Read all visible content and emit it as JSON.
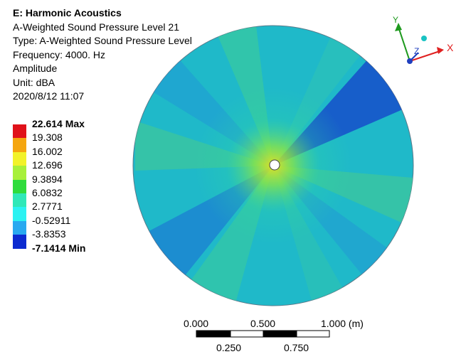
{
  "header": {
    "title": "E: Harmonic Acoustics",
    "lines": [
      "A-Weighted Sound Pressure Level 21",
      "Type: A-Weighted Sound Pressure Level",
      "Frequency: 4000. Hz",
      "Amplitude",
      "Unit: dBA",
      "2020/8/12 11:07"
    ]
  },
  "legend": {
    "max_label": "22.614 Max",
    "min_label": "-7.1414 Min",
    "levels": [
      "19.308",
      "16.002",
      "12.696",
      "9.3894",
      "6.0832",
      "2.7771",
      "-0.52911",
      "-3.8353"
    ],
    "colors": [
      "#e0121a",
      "#f5a60f",
      "#f2f22a",
      "#a8f03a",
      "#2fdc3c",
      "#2fe8b8",
      "#2bf2f2",
      "#29a9f0",
      "#0c2bd0"
    ]
  },
  "scale_bar": {
    "top_labels": [
      "0.000",
      "0.500",
      "1.000 (m)"
    ],
    "bottom_labels": [
      "0.250",
      "0.750"
    ]
  },
  "triad": {
    "x_label": "X",
    "y_label": "Y",
    "z_label": "Z",
    "x_color": "#e02020",
    "y_color": "#1f9a1f",
    "z_color": "#1f3fbf"
  }
}
